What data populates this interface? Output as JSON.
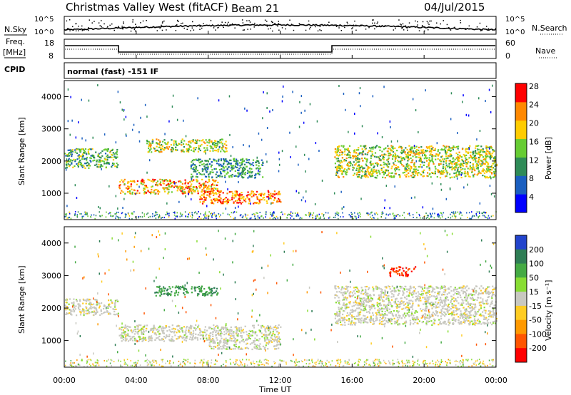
{
  "header": {
    "title": "Christmas Valley West (fitACF)",
    "beam": "Beam 21",
    "date": "04/Jul/2015"
  },
  "sky_panel": {
    "left_label": "N.Sky",
    "right_label": "N.Search",
    "y_ticks": [
      "10^5",
      "10^0"
    ]
  },
  "freq_panel": {
    "left_label_1": "Freq.",
    "left_label_2": "[MHz]",
    "right_label": "Nave",
    "left_ticks": [
      "18",
      "8"
    ],
    "right_ticks": [
      "60",
      "0"
    ]
  },
  "cpid": {
    "label": "CPID",
    "text": "normal (fast) -151 IF"
  },
  "time_axis": {
    "label": "Time UT",
    "ticks": [
      "00:00",
      "04:00",
      "08:00",
      "12:00",
      "16:00",
      "20:00",
      "00:00"
    ]
  },
  "range_axis": {
    "label": "Slant Range [km]",
    "ticks": [
      "1000",
      "2000",
      "3000",
      "4000"
    ]
  },
  "power_colorbar": {
    "label": "Power [dB]",
    "ticks": [
      "4",
      "8",
      "12",
      "16",
      "20",
      "24",
      "28"
    ],
    "colors": [
      "#0000ff",
      "#1a5fc0",
      "#2e8b57",
      "#66cc33",
      "#ffcc00",
      "#ff8800",
      "#ff0000"
    ]
  },
  "velocity_colorbar": {
    "label": "Velocity [m s⁻¹]",
    "ticks": [
      "200",
      "100",
      "50",
      "15",
      "-15",
      "-50",
      "-100",
      "-200"
    ],
    "colors": [
      "#2244cc",
      "#2e7d55",
      "#44aa44",
      "#88dd33",
      "#c8c8c0",
      "#ffcc22",
      "#ff9900",
      "#ff5500",
      "#ff0000"
    ]
  },
  "chart_data": {
    "type": "heatmap",
    "x_range_hours": [
      0,
      24
    ],
    "y_range_km": [
      180,
      4500
    ],
    "power_panel_features": [
      {
        "t": [
          0,
          3
        ],
        "range": [
          1800,
          2400
        ],
        "power": 14
      },
      {
        "t": [
          3,
          8.5
        ],
        "range": [
          1000,
          1450
        ],
        "power": 22
      },
      {
        "t": [
          4.5,
          9
        ],
        "range": [
          2300,
          2700
        ],
        "power": 18
      },
      {
        "t": [
          7,
          11
        ],
        "range": [
          1500,
          2100
        ],
        "power": 12
      },
      {
        "t": [
          7.5,
          12
        ],
        "range": [
          700,
          1100
        ],
        "power": 24
      },
      {
        "t": [
          15,
          24
        ],
        "range": [
          1500,
          2500
        ],
        "power": 18
      }
    ],
    "velocity_panel_features": [
      {
        "t": [
          0,
          3
        ],
        "range": [
          1800,
          2300
        ],
        "velocity": 0
      },
      {
        "t": [
          5,
          8.5
        ],
        "range": [
          2400,
          2700
        ],
        "velocity": 100
      },
      {
        "t": [
          3,
          12
        ],
        "range": [
          1000,
          1500
        ],
        "velocity": 0
      },
      {
        "t": [
          8,
          12
        ],
        "range": [
          750,
          1050
        ],
        "velocity": 0
      },
      {
        "t": [
          15,
          24
        ],
        "range": [
          1500,
          2700
        ],
        "velocity": 0
      },
      {
        "t": [
          18,
          19.5
        ],
        "range": [
          3000,
          3300
        ],
        "velocity": -200
      }
    ]
  }
}
